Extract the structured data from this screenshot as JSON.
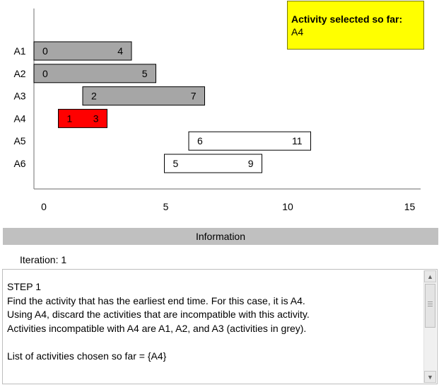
{
  "chart_data": {
    "type": "gantt",
    "xlim": [
      0,
      15
    ],
    "x_ticks": [
      0,
      5,
      10,
      15
    ],
    "activities": [
      {
        "label": "A1",
        "start": 0,
        "end": 4,
        "state": "discarded",
        "start_text": "0",
        "end_text": "4"
      },
      {
        "label": "A2",
        "start": 0,
        "end": 5,
        "state": "discarded",
        "start_text": "0",
        "end_text": "5"
      },
      {
        "label": "A3",
        "start": 2,
        "end": 7,
        "state": "discarded",
        "start_text": "2",
        "end_text": "7"
      },
      {
        "label": "A4",
        "start": 1,
        "end": 3,
        "state": "selected",
        "start_text": "1",
        "end_text": "3"
      },
      {
        "label": "A5",
        "start": 6,
        "end": 11,
        "state": "remaining",
        "start_text": "6",
        "end_text": "11"
      },
      {
        "label": "A6",
        "start": 5,
        "end": 9,
        "state": "remaining",
        "start_text": "5",
        "end_text": "9"
      }
    ],
    "colors": {
      "discarded": "#a6a6a6",
      "selected": "#ff0000",
      "remaining": "#ffffff",
      "selected_panel": "#ffff00"
    }
  },
  "selected_panel": {
    "title": "Activity selected so far:",
    "value": "A4"
  },
  "info": {
    "header": "Information",
    "iteration": "Iteration: 1",
    "step_text": "STEP 1\nFind the activity that has the earliest end time. For this case, it is A4.\nUsing A4, discard the activities that are incompatible with this activity.\nActivities incompatible with A4 are A1, A2, and A3 (activities in grey).\n\nList of activities chosen so far = {A4}"
  },
  "scrollbar": {
    "up_icon": "triangle-up",
    "down_icon": "triangle-down"
  }
}
